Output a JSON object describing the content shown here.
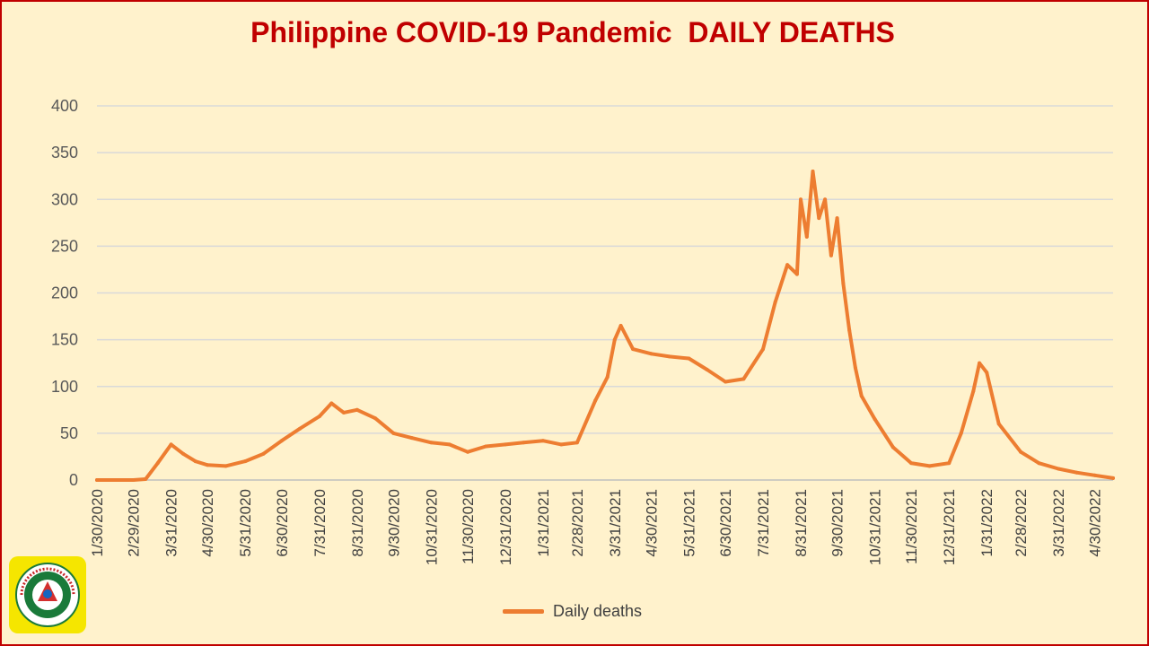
{
  "title": "Philippine COVID-19 Pandemic  DAILY DEATHS",
  "legend": {
    "label": "Daily deaths",
    "color": "#ed7d31"
  },
  "logo": {
    "name": "department-of-health-seal",
    "text": "REPUBLIC OF THE PHILIPPINES · DEPARTMENT OF HEALTH"
  },
  "colors": {
    "line": "#ed7d31",
    "title": "#c00000",
    "background": "#fff2cc",
    "grid": "#d9d9d9"
  },
  "chart_data": {
    "type": "line",
    "title": "Philippine COVID-19 Pandemic  DAILY DEATHS",
    "xlabel": "",
    "ylabel": "",
    "ylim": [
      0,
      400
    ],
    "yticks": [
      0,
      50,
      100,
      150,
      200,
      250,
      300,
      350,
      400
    ],
    "x_tick_labels": [
      "1/30/2020",
      "2/29/2020",
      "3/31/2020",
      "4/30/2020",
      "5/31/2020",
      "6/30/2020",
      "7/31/2020",
      "8/31/2020",
      "9/30/2020",
      "10/31/2020",
      "11/30/2020",
      "12/31/2020",
      "1/31/2021",
      "2/28/2021",
      "3/31/2021",
      "4/30/2021",
      "5/31/2021",
      "6/30/2021",
      "7/31/2021",
      "8/31/2021",
      "9/30/2021",
      "10/31/2021",
      "11/30/2021",
      "12/31/2021",
      "1/31/2022",
      "2/28/2022",
      "3/31/2022",
      "4/30/2022"
    ],
    "grid": true,
    "legend_position": "bottom",
    "series": [
      {
        "name": "Daily deaths",
        "x": [
          "1/30/2020",
          "2/29/2020",
          "3/10/2020",
          "3/20/2020",
          "3/31/2020",
          "4/10/2020",
          "4/20/2020",
          "4/30/2020",
          "5/15/2020",
          "5/31/2020",
          "6/15/2020",
          "6/30/2020",
          "7/15/2020",
          "7/31/2020",
          "8/10/2020",
          "8/20/2020",
          "8/31/2020",
          "9/15/2020",
          "9/30/2020",
          "10/15/2020",
          "10/31/2020",
          "11/15/2020",
          "11/30/2020",
          "12/15/2020",
          "12/31/2020",
          "1/15/2021",
          "1/31/2021",
          "2/15/2021",
          "2/28/2021",
          "3/15/2021",
          "3/25/2021",
          "3/31/2021",
          "4/5/2021",
          "4/15/2021",
          "4/30/2021",
          "5/15/2021",
          "5/31/2021",
          "6/15/2021",
          "6/30/2021",
          "7/15/2021",
          "7/31/2021",
          "8/10/2021",
          "8/20/2021",
          "8/28/2021",
          "8/31/2021",
          "9/5/2021",
          "9/10/2021",
          "9/15/2021",
          "9/20/2021",
          "9/25/2021",
          "9/30/2021",
          "10/5/2021",
          "10/10/2021",
          "10/15/2021",
          "10/20/2021",
          "10/31/2021",
          "11/15/2021",
          "11/30/2021",
          "12/15/2021",
          "12/31/2021",
          "1/10/2022",
          "1/20/2022",
          "1/25/2022",
          "1/31/2022",
          "2/10/2022",
          "2/28/2022",
          "3/15/2022",
          "3/31/2022",
          "4/15/2022",
          "4/30/2022",
          "5/15/2022"
        ],
        "values": [
          0,
          0,
          1,
          18,
          38,
          28,
          20,
          16,
          15,
          20,
          28,
          42,
          55,
          68,
          82,
          72,
          75,
          66,
          50,
          45,
          40,
          38,
          30,
          36,
          38,
          40,
          42,
          38,
          40,
          85,
          110,
          150,
          165,
          140,
          135,
          132,
          130,
          118,
          105,
          108,
          140,
          190,
          230,
          220,
          300,
          260,
          330,
          280,
          300,
          240,
          280,
          210,
          160,
          120,
          90,
          65,
          35,
          18,
          15,
          18,
          50,
          95,
          125,
          115,
          60,
          30,
          18,
          12,
          8,
          5,
          2
        ]
      }
    ]
  }
}
